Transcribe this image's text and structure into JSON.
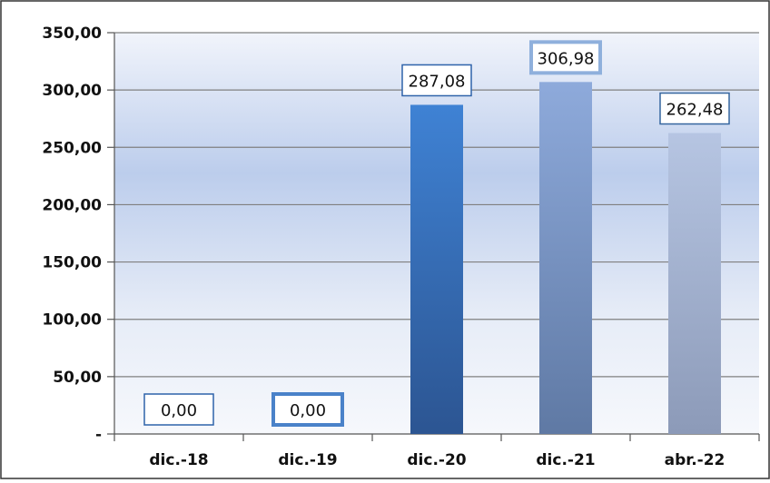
{
  "chart_data": {
    "type": "bar",
    "title": "",
    "xlabel": "",
    "ylabel": "",
    "categories": [
      "dic.-18",
      "dic.-19",
      "dic.-20",
      "dic.-21",
      "abr.-22"
    ],
    "values": [
      0.0,
      0.0,
      287.08,
      306.98,
      262.48
    ],
    "data_labels": [
      "0,00",
      "0,00",
      "287,08",
      "306,98",
      "262,48"
    ],
    "ylim": [
      0,
      350
    ],
    "y_ticks": [
      0,
      50,
      100,
      150,
      200,
      250,
      300,
      350
    ],
    "y_tick_labels": [
      "-",
      "50,00",
      "100,00",
      "150,00",
      "200,00",
      "250,00",
      "300,00",
      "350,00"
    ],
    "grid": true,
    "colors": {
      "bars": [
        "#3a6fb8",
        "#3a6fb8",
        "#3570bd",
        "#8aa3d0",
        "#aebbd8"
      ],
      "label_borders": [
        "#2e63aa",
        "#4a82c9",
        "#2e63aa",
        "#8fb0dc",
        "#35669f"
      ],
      "plot_background_top": "#eef2fa",
      "plot_background_mid": "#c3d2ee",
      "gridline": "#808080"
    }
  }
}
